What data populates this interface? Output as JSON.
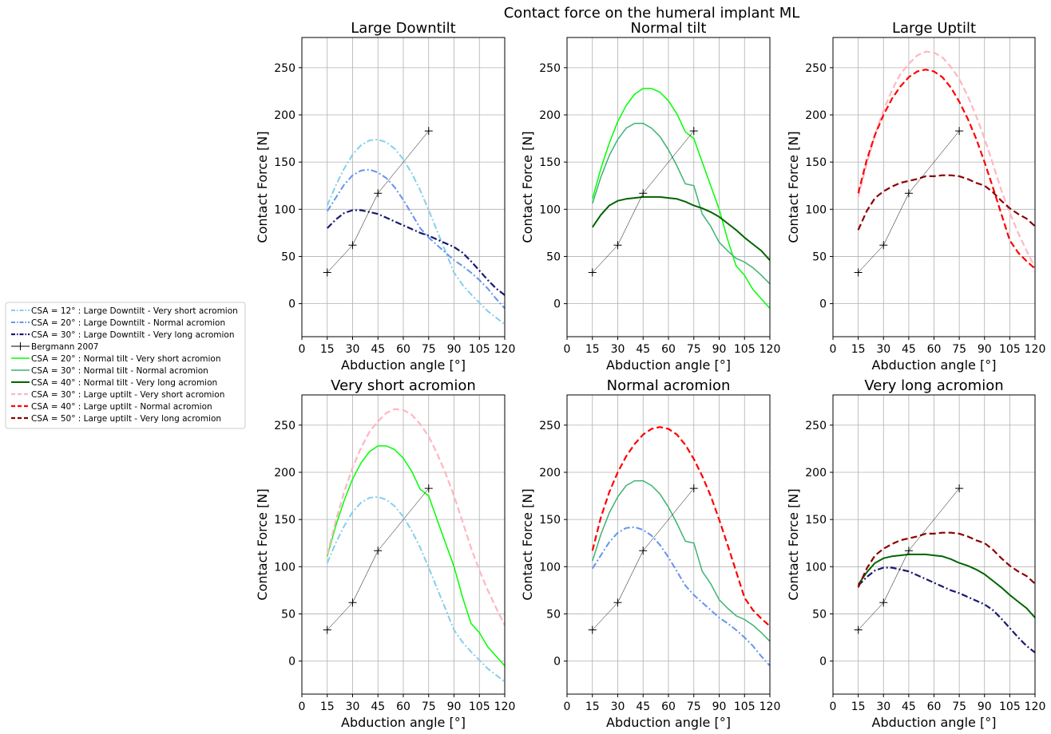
{
  "figure": {
    "suptitle": "Contact force on the humeral implant ML"
  },
  "legend": {
    "placement": "left",
    "entries": [
      {
        "key": "s12_ld",
        "label": "CSA = 12° : Large Downtilt      -  Very short acromion"
      },
      {
        "key": "s20_ld",
        "label": "CSA = 20° : Large Downtilt      -  Normal acromion"
      },
      {
        "key": "s30_ld",
        "label": "CSA = 30° : Large Downtilt      -  Very long acromion"
      },
      {
        "key": "bergmann",
        "label": "Bergmann 2007"
      },
      {
        "key": "s20_nt",
        "label": "CSA = 20° : Normal tilt          -  Very short acromion"
      },
      {
        "key": "s30_nt",
        "label": "CSA = 30° : Normal tilt          -  Normal acromion"
      },
      {
        "key": "s40_nt",
        "label": "CSA = 40° : Normal tilt          -  Very long acromion"
      },
      {
        "key": "s30_lu",
        "label": "CSA = 30° : Large uptilt      -  Very short acromion"
      },
      {
        "key": "s40_lu",
        "label": "CSA = 40° : Large uptilt      -  Normal acromion"
      },
      {
        "key": "s50_lu",
        "label": "CSA = 50° : Large uptilt      -  Very long acromion"
      }
    ]
  },
  "styles": {
    "s12_ld": {
      "color": "#87CEEB",
      "dash": "dashdot",
      "width": 2
    },
    "s20_ld": {
      "color": "#6495ED",
      "dash": "dashdot",
      "width": 2
    },
    "s30_ld": {
      "color": "#191970",
      "dash": "dashdot",
      "width": 2.2
    },
    "bergmann": {
      "color": "#000000",
      "dash": "solid",
      "width": 0.5,
      "marker": "plus"
    },
    "s20_nt": {
      "color": "#00FF00",
      "dash": "solid",
      "width": 1.5
    },
    "s30_nt": {
      "color": "#3CB371",
      "dash": "solid",
      "width": 1.5
    },
    "s40_nt": {
      "color": "#006400",
      "dash": "solid",
      "width": 2
    },
    "s30_lu": {
      "color": "#FFB6C1",
      "dash": "dashed",
      "width": 2.2
    },
    "s40_lu": {
      "color": "#FF0000",
      "dash": "dashed",
      "width": 2.2
    },
    "s50_lu": {
      "color": "#8B0000",
      "dash": "dashed",
      "width": 2.2
    }
  },
  "chart_data": [
    {
      "type": "line",
      "title": "Large Downtilt",
      "xlabel": "Abduction angle [°]",
      "ylabel": "Contact Force [N]",
      "xlim": [
        0,
        120
      ],
      "ylim": [
        -35,
        282
      ],
      "xticks": [
        0,
        15,
        30,
        45,
        60,
        75,
        90,
        105,
        120
      ],
      "yticks": [
        0,
        50,
        100,
        150,
        200,
        250
      ],
      "grid": true,
      "series": [
        "s12_ld",
        "s20_ld",
        "s30_ld",
        "bergmann"
      ]
    },
    {
      "type": "line",
      "title": "Normal tilt",
      "xlabel": "Abduction angle [°]",
      "ylabel": "Contact Force [N]",
      "xlim": [
        0,
        120
      ],
      "ylim": [
        -35,
        282
      ],
      "xticks": [
        0,
        15,
        30,
        45,
        60,
        75,
        90,
        105,
        120
      ],
      "yticks": [
        0,
        50,
        100,
        150,
        200,
        250
      ],
      "grid": true,
      "series": [
        "s20_nt",
        "s30_nt",
        "s40_nt",
        "bergmann"
      ]
    },
    {
      "type": "line",
      "title": "Large Uptilt",
      "xlabel": "Abduction angle [°]",
      "ylabel": "Contact Force [N]",
      "xlim": [
        0,
        120
      ],
      "ylim": [
        -35,
        282
      ],
      "xticks": [
        0,
        15,
        30,
        45,
        60,
        75,
        90,
        105,
        120
      ],
      "yticks": [
        0,
        50,
        100,
        150,
        200,
        250
      ],
      "grid": true,
      "series": [
        "s30_lu",
        "s40_lu",
        "s50_lu",
        "bergmann"
      ]
    },
    {
      "type": "line",
      "title": "Very short acromion",
      "xlabel": "Abduction angle [°]",
      "ylabel": "Contact Force [N]",
      "xlim": [
        0,
        120
      ],
      "ylim": [
        -35,
        282
      ],
      "xticks": [
        0,
        15,
        30,
        45,
        60,
        75,
        90,
        105,
        120
      ],
      "yticks": [
        0,
        50,
        100,
        150,
        200,
        250
      ],
      "grid": true,
      "series": [
        "s12_ld",
        "s20_nt",
        "s30_lu",
        "bergmann"
      ]
    },
    {
      "type": "line",
      "title": "Normal acromion",
      "xlabel": "Abduction angle [°]",
      "ylabel": "Contact Force [N]",
      "xlim": [
        0,
        120
      ],
      "ylim": [
        -35,
        282
      ],
      "xticks": [
        0,
        15,
        30,
        45,
        60,
        75,
        90,
        105,
        120
      ],
      "yticks": [
        0,
        50,
        100,
        150,
        200,
        250
      ],
      "grid": true,
      "series": [
        "s20_ld",
        "s30_nt",
        "s40_lu",
        "bergmann"
      ]
    },
    {
      "type": "line",
      "title": "Very long acromion",
      "xlabel": "Abduction angle [°]",
      "ylabel": "Contact Force [N]",
      "xlim": [
        0,
        120
      ],
      "ylim": [
        -35,
        282
      ],
      "xticks": [
        0,
        15,
        30,
        45,
        60,
        75,
        90,
        105,
        120
      ],
      "yticks": [
        0,
        50,
        100,
        150,
        200,
        250
      ],
      "grid": true,
      "series": [
        "s30_ld",
        "s40_nt",
        "s50_lu",
        "bergmann"
      ]
    }
  ],
  "series_data": {
    "s12_ld": {
      "x": [
        15,
        20,
        25,
        30,
        35,
        40,
        45,
        50,
        55,
        60,
        65,
        70,
        75,
        80,
        85,
        90,
        95,
        100,
        105,
        110,
        115,
        120
      ],
      "y": [
        104,
        125,
        143,
        158,
        168,
        173,
        174,
        171,
        164,
        153,
        138,
        120,
        99,
        77,
        55,
        33,
        20,
        10,
        1,
        -8,
        -15,
        -22
      ]
    },
    "s20_ld": {
      "x": [
        15,
        20,
        25,
        30,
        35,
        40,
        45,
        50,
        55,
        60,
        65,
        70,
        75,
        80,
        85,
        90,
        95,
        100,
        105,
        110,
        115,
        120
      ],
      "y": [
        98,
        112,
        126,
        136,
        141,
        142,
        139,
        133,
        123,
        110,
        95,
        80,
        70,
        62,
        54,
        46,
        40,
        33,
        25,
        16,
        5,
        -5
      ]
    },
    "s30_ld": {
      "x": [
        15,
        20,
        25,
        30,
        35,
        40,
        45,
        50,
        55,
        60,
        65,
        70,
        75,
        80,
        85,
        90,
        95,
        100,
        105,
        110,
        115,
        120
      ],
      "y": [
        80,
        89,
        96,
        99,
        99,
        97,
        95,
        91,
        87,
        83,
        79,
        75,
        72,
        68,
        64,
        60,
        54,
        45,
        35,
        25,
        16,
        9
      ]
    },
    "s20_nt": {
      "x": [
        15,
        20,
        25,
        30,
        35,
        40,
        45,
        50,
        55,
        60,
        65,
        70,
        75,
        80,
        85,
        90,
        95,
        100,
        105,
        110,
        115,
        120
      ],
      "y": [
        111,
        143,
        170,
        193,
        210,
        222,
        228,
        228,
        224,
        215,
        201,
        182,
        175,
        150,
        125,
        100,
        68,
        40,
        30,
        15,
        5,
        -5
      ]
    },
    "s30_nt": {
      "x": [
        15,
        20,
        25,
        30,
        35,
        40,
        45,
        50,
        55,
        60,
        65,
        70,
        75,
        80,
        85,
        90,
        95,
        100,
        105,
        110,
        115,
        120
      ],
      "y": [
        106,
        134,
        157,
        174,
        186,
        191,
        191,
        186,
        177,
        163,
        146,
        127,
        125,
        95,
        82,
        65,
        56,
        48,
        44,
        38,
        30,
        21
      ]
    },
    "s40_nt": {
      "x": [
        15,
        20,
        25,
        30,
        35,
        40,
        45,
        50,
        55,
        60,
        65,
        70,
        75,
        80,
        85,
        90,
        95,
        100,
        105,
        110,
        115,
        120
      ],
      "y": [
        81,
        94,
        104,
        109,
        111,
        112,
        113,
        113,
        113,
        112,
        111,
        108,
        104,
        101,
        97,
        92,
        85,
        78,
        70,
        63,
        56,
        46
      ]
    },
    "s30_lu": {
      "x": [
        15,
        20,
        25,
        30,
        35,
        40,
        45,
        50,
        55,
        60,
        65,
        70,
        75,
        80,
        85,
        90,
        95,
        100,
        105,
        110,
        115,
        120
      ],
      "y": [
        113,
        148,
        179,
        205,
        226,
        243,
        254,
        263,
        267,
        266,
        261,
        251,
        238,
        220,
        199,
        175,
        148,
        120,
        96,
        75,
        56,
        38
      ]
    },
    "s40_lu": {
      "x": [
        15,
        20,
        25,
        30,
        35,
        40,
        45,
        50,
        55,
        60,
        65,
        70,
        75,
        80,
        85,
        90,
        95,
        100,
        105,
        110,
        115,
        120
      ],
      "y": [
        117,
        152,
        179,
        200,
        217,
        230,
        240,
        246,
        248,
        246,
        240,
        229,
        214,
        196,
        175,
        150,
        123,
        95,
        67,
        54,
        45,
        37
      ]
    },
    "s50_lu": {
      "x": [
        15,
        20,
        25,
        30,
        35,
        40,
        45,
        50,
        55,
        60,
        65,
        70,
        75,
        80,
        85,
        90,
        95,
        100,
        105,
        110,
        115,
        120
      ],
      "y": [
        78,
        98,
        112,
        119,
        124,
        128,
        130,
        132,
        135,
        135,
        136,
        136,
        135,
        132,
        128,
        125,
        118,
        109,
        101,
        95,
        90,
        82
      ]
    },
    "bergmann": {
      "x": [
        15,
        30,
        45,
        75
      ],
      "y": [
        33,
        62,
        117,
        183
      ]
    }
  }
}
